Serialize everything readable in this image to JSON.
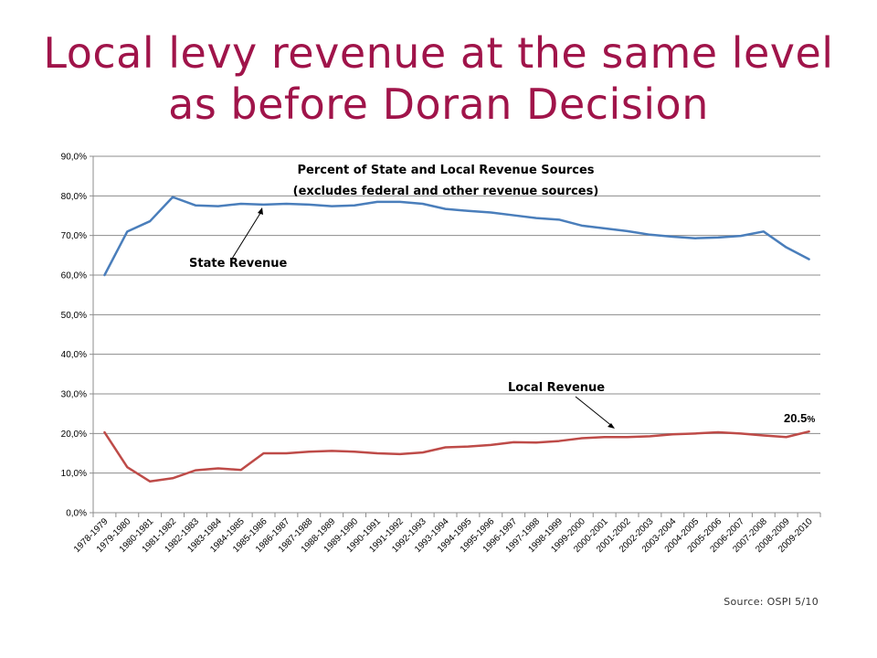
{
  "slide": {
    "title_line1": "Local levy revenue at the same level",
    "title_line2": "as before Doran Decision",
    "source": "Source: OSPI 5/10"
  },
  "chart_data": {
    "type": "line",
    "title": "Percent of State and Local Revenue Sources",
    "subtitle": "(excludes federal and other revenue sources)",
    "categories": [
      "1978-1979",
      "1979-1980",
      "1980-1981",
      "1981-1982",
      "1982-1983",
      "1983-1984",
      "1984-1985",
      "1985-1986",
      "1986-1987",
      "1987-1988",
      "1988-1989",
      "1989-1990",
      "1990-1991",
      "1991-1992",
      "1992-1993",
      "1993-1994",
      "1994-1995",
      "1995-1996",
      "1996-1997",
      "1997-1998",
      "1998-1999",
      "1999-2000",
      "2000-2001",
      "2001-2002",
      "2002-2003",
      "2003-2004",
      "2004-2005",
      "2005-2006",
      "2006-2007",
      "2007-2008",
      "2008-2009",
      "2009-2010"
    ],
    "yticks": [
      "0,0%",
      "10,0%",
      "20,0%",
      "30,0%",
      "40,0%",
      "50,0%",
      "60,0%",
      "70,0%",
      "80,0%",
      "90,0%"
    ],
    "ylim": [
      0,
      90
    ],
    "grid": true,
    "series": [
      {
        "name": "State Revenue",
        "color": "#4a7ebb",
        "values": [
          60.0,
          71.0,
          73.6,
          79.7,
          77.6,
          77.4,
          78.0,
          77.8,
          78.0,
          77.8,
          77.4,
          77.6,
          78.5,
          78.5,
          78.0,
          76.7,
          76.2,
          75.8,
          75.1,
          74.4,
          74.0,
          72.5,
          71.8,
          71.1,
          70.2,
          69.7,
          69.3,
          69.5,
          69.9,
          71.0,
          67.0,
          64.0
        ]
      },
      {
        "name": "Local Revenue",
        "color": "#be4b48",
        "values": [
          20.3,
          11.5,
          7.9,
          8.7,
          10.7,
          11.2,
          10.8,
          15.0,
          15.0,
          15.4,
          15.6,
          15.4,
          15.0,
          14.8,
          15.2,
          16.5,
          16.7,
          17.1,
          17.8,
          17.7,
          18.1,
          18.8,
          19.1,
          19.1,
          19.3,
          19.8,
          20.0,
          20.3,
          20.0,
          19.5,
          19.1,
          20.5
        ]
      }
    ],
    "annotations": {
      "state_label": "State Revenue",
      "local_label": "Local Revenue",
      "end_value": "20.5",
      "end_unit": "%"
    }
  }
}
